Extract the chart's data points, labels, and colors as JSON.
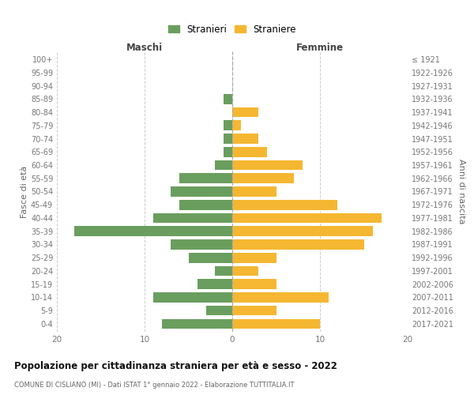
{
  "age_groups": [
    "0-4",
    "5-9",
    "10-14",
    "15-19",
    "20-24",
    "25-29",
    "30-34",
    "35-39",
    "40-44",
    "45-49",
    "50-54",
    "55-59",
    "60-64",
    "65-69",
    "70-74",
    "75-79",
    "80-84",
    "85-89",
    "90-94",
    "95-99",
    "100+"
  ],
  "birth_years": [
    "2017-2021",
    "2012-2016",
    "2007-2011",
    "2002-2006",
    "1997-2001",
    "1992-1996",
    "1987-1991",
    "1982-1986",
    "1977-1981",
    "1972-1976",
    "1967-1971",
    "1962-1966",
    "1957-1961",
    "1952-1956",
    "1947-1951",
    "1942-1946",
    "1937-1941",
    "1932-1936",
    "1927-1931",
    "1922-1926",
    "≤ 1921"
  ],
  "maschi": [
    8,
    3,
    9,
    4,
    2,
    5,
    7,
    18,
    9,
    6,
    7,
    6,
    2,
    1,
    1,
    1,
    0,
    1,
    0,
    0,
    0
  ],
  "femmine": [
    10,
    5,
    11,
    5,
    3,
    5,
    15,
    16,
    17,
    12,
    5,
    7,
    8,
    4,
    3,
    1,
    3,
    0,
    0,
    0,
    0
  ],
  "maschi_color": "#6a9e5e",
  "femmine_color": "#f5b731",
  "background_color": "#ffffff",
  "grid_color": "#cccccc",
  "title": "Popolazione per cittadinanza straniera per età e sesso - 2022",
  "subtitle": "COMUNE DI CISLIANO (MI) - Dati ISTAT 1° gennaio 2022 - Elaborazione TUTTITALIA.IT",
  "xlabel_left": "Maschi",
  "xlabel_right": "Femmine",
  "ylabel_left": "Fasce di età",
  "ylabel_right": "Anni di nascita",
  "legend_maschi": "Stranieri",
  "legend_femmine": "Straniere",
  "xlim": 20,
  "bar_height": 0.75
}
